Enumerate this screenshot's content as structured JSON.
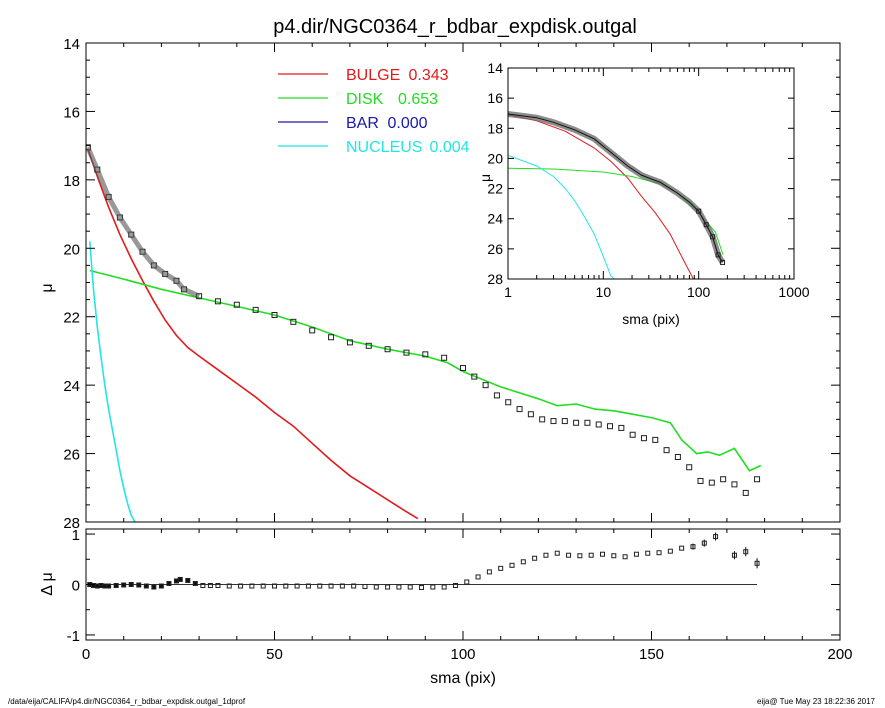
{
  "title": "p4.dir/NGC0364_r_bdbar_expdisk.outgal",
  "footer_left": "/data/eija/CALIFA/p4.dir/NGC0364_r_bdbar_expdisk.outgal_1dprof",
  "footer_right": "eija@  Tue May 23 18:22:36 2017",
  "colors": {
    "bulge": "#e11b1b",
    "disk": "#22dd22",
    "bar": "#1a1aa6",
    "nucleus": "#22e5e5",
    "data": "#222222"
  },
  "chart_data": [
    {
      "type": "line",
      "id": "main",
      "xlabel": "sma (pix)",
      "ylabel": "μ",
      "xlim": [
        0,
        200
      ],
      "ylim": [
        28,
        14
      ],
      "x_ticks": [
        0,
        50,
        100,
        150,
        200
      ],
      "y_ticks": [
        14,
        16,
        18,
        20,
        22,
        24,
        26,
        28
      ],
      "legend": [
        {
          "name": "BULGE",
          "value": "0.343",
          "color": "#e11b1b"
        },
        {
          "name": "DISK",
          "value": "0.653",
          "color": "#22dd22"
        },
        {
          "name": "BAR",
          "value": "0.000",
          "color": "#1a1aa6"
        },
        {
          "name": "NUCLEUS",
          "value": "0.004",
          "color": "#22e5e5"
        }
      ],
      "series": [
        {
          "name": "BULGE",
          "color": "#e11b1b",
          "points": [
            [
              0.5,
              17.1
            ],
            [
              3,
              17.9
            ],
            [
              6,
              18.8
            ],
            [
              9,
              19.6
            ],
            [
              12,
              20.3
            ],
            [
              15,
              20.95
            ],
            [
              18,
              21.55
            ],
            [
              21,
              22.1
            ],
            [
              24,
              22.55
            ],
            [
              27,
              22.9
            ],
            [
              30,
              23.15
            ],
            [
              35,
              23.55
            ],
            [
              40,
              23.95
            ],
            [
              45,
              24.35
            ],
            [
              50,
              24.8
            ],
            [
              55,
              25.2
            ],
            [
              60,
              25.7
            ],
            [
              65,
              26.2
            ],
            [
              70,
              26.65
            ],
            [
              75,
              27.0
            ],
            [
              80,
              27.35
            ],
            [
              85,
              27.7
            ],
            [
              88,
              27.9
            ]
          ]
        },
        {
          "name": "DISK",
          "color": "#22dd22",
          "points": [
            [
              1,
              20.65
            ],
            [
              10,
              20.9
            ],
            [
              20,
              21.2
            ],
            [
              30,
              21.45
            ],
            [
              40,
              21.7
            ],
            [
              50,
              21.95
            ],
            [
              60,
              22.3
            ],
            [
              70,
              22.7
            ],
            [
              80,
              22.95
            ],
            [
              90,
              23.15
            ],
            [
              96,
              23.35
            ],
            [
              100,
              23.6
            ],
            [
              110,
              24.05
            ],
            [
              120,
              24.4
            ],
            [
              125,
              24.6
            ],
            [
              130,
              24.55
            ],
            [
              135,
              24.7
            ],
            [
              140,
              24.75
            ],
            [
              145,
              24.85
            ],
            [
              150,
              24.95
            ],
            [
              155,
              25.1
            ],
            [
              158,
              25.6
            ],
            [
              162,
              26.0
            ],
            [
              165,
              25.95
            ],
            [
              168,
              26.05
            ],
            [
              172,
              25.85
            ],
            [
              176,
              26.5
            ],
            [
              179,
              26.35
            ]
          ]
        },
        {
          "name": "NUCLEUS",
          "color": "#22e5e5",
          "points": [
            [
              1,
              19.8
            ],
            [
              2,
              21.2
            ],
            [
              3,
              22.3
            ],
            [
              4,
              23.2
            ],
            [
              5,
              24.0
            ],
            [
              6,
              24.7
            ],
            [
              7,
              25.3
            ],
            [
              8,
              25.9
            ],
            [
              9,
              26.5
            ],
            [
              10,
              27.0
            ],
            [
              11,
              27.45
            ],
            [
              12,
              27.8
            ],
            [
              13,
              28.0
            ]
          ]
        },
        {
          "name": "data",
          "color": "#222222",
          "points": [
            [
              0.5,
              17.05
            ],
            [
              3,
              17.7
            ],
            [
              6,
              18.5
            ],
            [
              9,
              19.1
            ],
            [
              12,
              19.6
            ],
            [
              15,
              20.1
            ],
            [
              18,
              20.5
            ],
            [
              21,
              20.75
            ],
            [
              24,
              20.95
            ],
            [
              26,
              21.2
            ],
            [
              30,
              21.4
            ],
            [
              35,
              21.55
            ],
            [
              40,
              21.65
            ],
            [
              45,
              21.8
            ],
            [
              50,
              21.95
            ],
            [
              55,
              22.15
            ],
            [
              60,
              22.4
            ],
            [
              65,
              22.6
            ],
            [
              70,
              22.75
            ],
            [
              75,
              22.85
            ],
            [
              80,
              22.95
            ],
            [
              85,
              23.05
            ],
            [
              90,
              23.1
            ],
            [
              95,
              23.2
            ],
            [
              100,
              23.5
            ],
            [
              103,
              23.75
            ],
            [
              106,
              24.0
            ],
            [
              109,
              24.3
            ],
            [
              112,
              24.5
            ],
            [
              115,
              24.7
            ],
            [
              118,
              24.85
            ],
            [
              121,
              25.0
            ],
            [
              124,
              25.05
            ],
            [
              127,
              25.05
            ],
            [
              130,
              25.1
            ],
            [
              133,
              25.1
            ],
            [
              136,
              25.15
            ],
            [
              139,
              25.2
            ],
            [
              142,
              25.25
            ],
            [
              145,
              25.45
            ],
            [
              148,
              25.55
            ],
            [
              151,
              25.6
            ],
            [
              154,
              25.9
            ],
            [
              157,
              26.1
            ],
            [
              160,
              26.4
            ],
            [
              163,
              26.8
            ],
            [
              166,
              26.85
            ],
            [
              169,
              26.75
            ],
            [
              172,
              26.9
            ],
            [
              175,
              27.15
            ],
            [
              178,
              26.75
            ]
          ]
        }
      ]
    },
    {
      "type": "scatter",
      "id": "residual",
      "xlabel": "sma (pix)",
      "ylabel": "Δ μ",
      "xlim": [
        0,
        200
      ],
      "ylim": [
        -1.1,
        1.1
      ],
      "x_ticks": [
        0,
        50,
        100,
        150,
        200
      ],
      "y_ticks": [
        1,
        0,
        -1
      ],
      "points": [
        [
          1,
          0.0
        ],
        [
          2,
          -0.02
        ],
        [
          3,
          -0.03
        ],
        [
          4,
          -0.02
        ],
        [
          5,
          -0.03
        ],
        [
          6,
          -0.03
        ],
        [
          8,
          -0.02
        ],
        [
          10,
          -0.01
        ],
        [
          12,
          0.0
        ],
        [
          14,
          -0.01
        ],
        [
          16,
          -0.03
        ],
        [
          18,
          -0.05
        ],
        [
          20,
          -0.03
        ],
        [
          22,
          0.02
        ],
        [
          24,
          0.07
        ],
        [
          25,
          0.1
        ],
        [
          27,
          0.08
        ],
        [
          29,
          0.02
        ],
        [
          31,
          -0.02
        ],
        [
          33,
          -0.02
        ],
        [
          35,
          -0.02
        ],
        [
          38,
          -0.03
        ],
        [
          41,
          -0.03
        ],
        [
          44,
          -0.03
        ],
        [
          47,
          -0.03
        ],
        [
          50,
          -0.03
        ],
        [
          53,
          -0.03
        ],
        [
          56,
          -0.03
        ],
        [
          59,
          -0.03
        ],
        [
          62,
          -0.03
        ],
        [
          65,
          -0.03
        ],
        [
          68,
          -0.03
        ],
        [
          71,
          -0.03
        ],
        [
          74,
          -0.04
        ],
        [
          77,
          -0.05
        ],
        [
          80,
          -0.05
        ],
        [
          83,
          -0.05
        ],
        [
          86,
          -0.05
        ],
        [
          89,
          -0.06
        ],
        [
          92,
          -0.05
        ],
        [
          95,
          -0.05
        ],
        [
          98,
          -0.02
        ],
        [
          101,
          0.05
        ],
        [
          104,
          0.15
        ],
        [
          107,
          0.25
        ],
        [
          110,
          0.32
        ],
        [
          113,
          0.38
        ],
        [
          116,
          0.45
        ],
        [
          119,
          0.52
        ],
        [
          122,
          0.58
        ],
        [
          125,
          0.62
        ],
        [
          128,
          0.58
        ],
        [
          131,
          0.57
        ],
        [
          134,
          0.58
        ],
        [
          137,
          0.6
        ],
        [
          140,
          0.57
        ],
        [
          143,
          0.55
        ],
        [
          146,
          0.6
        ],
        [
          149,
          0.62
        ],
        [
          152,
          0.63
        ],
        [
          155,
          0.66
        ],
        [
          158,
          0.72
        ],
        [
          161,
          0.75
        ],
        [
          164,
          0.82
        ],
        [
          167,
          0.95
        ],
        [
          172,
          0.58
        ],
        [
          175,
          0.65
        ],
        [
          178,
          0.42
        ]
      ],
      "error_bars": [
        [
          161,
          0.75,
          0.06
        ],
        [
          164,
          0.82,
          0.07
        ],
        [
          167,
          0.95,
          0.08
        ],
        [
          172,
          0.58,
          0.08
        ],
        [
          175,
          0.65,
          0.09
        ],
        [
          178,
          0.42,
          0.1
        ]
      ]
    },
    {
      "type": "line",
      "id": "inset",
      "xlabel": "sma (pix)",
      "ylabel": "μ",
      "x_scale": "log",
      "xlim": [
        1,
        1000
      ],
      "ylim": [
        28,
        14
      ],
      "x_ticks": [
        "1",
        "10",
        "100",
        "1000"
      ],
      "y_ticks": [
        14,
        16,
        18,
        20,
        22,
        24,
        26,
        28
      ],
      "series": [
        {
          "name": "BULGE",
          "color": "#e11b1b",
          "points": [
            [
              1,
              17.1
            ],
            [
              2,
              17.5
            ],
            [
              4,
              18.2
            ],
            [
              8,
              19.3
            ],
            [
              12,
              20.2
            ],
            [
              18,
              21.3
            ],
            [
              25,
              22.5
            ],
            [
              35,
              23.6
            ],
            [
              50,
              25.0
            ],
            [
              70,
              26.8
            ],
            [
              88,
              28.0
            ]
          ]
        },
        {
          "name": "DISK",
          "color": "#22dd22",
          "points": [
            [
              1,
              20.65
            ],
            [
              3,
              20.7
            ],
            [
              10,
              20.9
            ],
            [
              20,
              21.2
            ],
            [
              40,
              21.7
            ],
            [
              60,
              22.3
            ],
            [
              100,
              23.6
            ],
            [
              150,
              24.9
            ],
            [
              180,
              26.4
            ]
          ]
        },
        {
          "name": "NUCLEUS",
          "color": "#22e5e5",
          "points": [
            [
              1,
              19.8
            ],
            [
              2,
              20.5
            ],
            [
              3,
              21.2
            ],
            [
              4,
              22.0
            ],
            [
              5,
              22.8
            ],
            [
              6,
              23.6
            ],
            [
              8,
              25.0
            ],
            [
              10,
              26.5
            ],
            [
              12,
              27.8
            ],
            [
              13,
              28.0
            ]
          ]
        },
        {
          "name": "data",
          "color": "#333333",
          "points": [
            [
              1,
              17.05
            ],
            [
              2,
              17.3
            ],
            [
              3,
              17.6
            ],
            [
              5,
              18.1
            ],
            [
              8,
              18.7
            ],
            [
              12,
              19.6
            ],
            [
              18,
              20.5
            ],
            [
              25,
              21.1
            ],
            [
              30,
              21.3
            ],
            [
              40,
              21.6
            ],
            [
              60,
              22.3
            ],
            [
              80,
              22.9
            ],
            [
              100,
              23.5
            ],
            [
              120,
              24.4
            ],
            [
              140,
              25.2
            ],
            [
              160,
              26.4
            ],
            [
              178,
              26.9
            ]
          ]
        }
      ]
    }
  ]
}
